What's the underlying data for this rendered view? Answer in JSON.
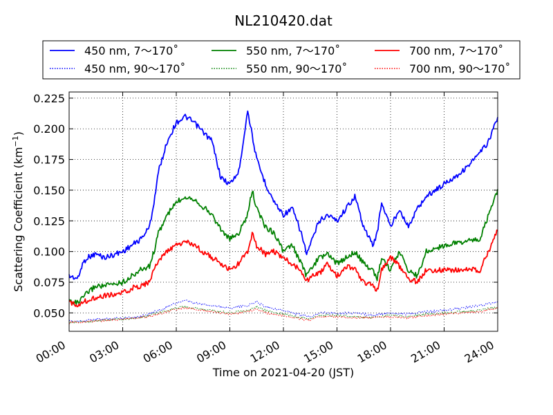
{
  "chart_data": {
    "type": "line",
    "title": "NL210420.dat",
    "xlabel": "Time on 2021-04-20 (JST)",
    "ylabel": "Scattering Coefficient (km",
    "ylabel_sup": "−1",
    "ylabel_close": ")",
    "xlim": [
      0,
      24
    ],
    "ylim": [
      0.035,
      0.23
    ],
    "grid": true,
    "legend_position": "top",
    "x_ticks": [
      0,
      3,
      6,
      9,
      12,
      15,
      18,
      21,
      24
    ],
    "x_tick_labels": [
      "00:00",
      "03:00",
      "06:00",
      "09:00",
      "12:00",
      "15:00",
      "18:00",
      "21:00",
      "24:00"
    ],
    "y_ticks": [
      0.05,
      0.075,
      0.1,
      0.125,
      0.15,
      0.175,
      0.2,
      0.225
    ],
    "y_tick_labels": [
      "0.050",
      "0.075",
      "0.100",
      "0.125",
      "0.150",
      "0.175",
      "0.200",
      "0.225"
    ],
    "series": [
      {
        "name": "450 nm, 7～170˚",
        "color": "#0000ff",
        "style": "solid",
        "x": [
          0,
          0.5,
          0.75,
          1,
          1.5,
          2,
          3,
          3.5,
          4,
          4.5,
          4.75,
          5,
          5.5,
          6,
          6.5,
          7,
          8,
          8.5,
          9,
          9.5,
          9.75,
          10,
          10.25,
          10.5,
          11,
          11.5,
          12,
          12.5,
          13,
          13.3,
          13.5,
          14,
          14.5,
          15,
          15.5,
          16,
          16.5,
          17,
          17.25,
          17.5,
          18,
          18.5,
          19,
          19.5,
          20,
          21,
          22,
          23,
          23.5,
          24
        ],
        "y": [
          0.08,
          0.078,
          0.09,
          0.095,
          0.098,
          0.095,
          0.1,
          0.105,
          0.11,
          0.12,
          0.14,
          0.165,
          0.19,
          0.205,
          0.21,
          0.205,
          0.19,
          0.16,
          0.155,
          0.165,
          0.19,
          0.215,
          0.195,
          0.175,
          0.155,
          0.14,
          0.13,
          0.135,
          0.115,
          0.098,
          0.105,
          0.125,
          0.13,
          0.125,
          0.135,
          0.145,
          0.12,
          0.105,
          0.115,
          0.14,
          0.12,
          0.135,
          0.12,
          0.135,
          0.145,
          0.155,
          0.165,
          0.18,
          0.19,
          0.21
        ]
      },
      {
        "name": "450 nm, 90～170˚",
        "color": "#0000ff",
        "style": "dotted",
        "x": [
          0,
          1,
          2,
          3,
          4,
          5,
          5.5,
          6,
          6.5,
          7,
          8,
          9,
          10,
          10.5,
          11,
          12,
          13,
          13.5,
          14,
          15,
          16,
          17,
          18,
          19,
          20,
          21,
          22,
          23,
          24
        ],
        "y": [
          0.043,
          0.044,
          0.045,
          0.046,
          0.047,
          0.052,
          0.055,
          0.058,
          0.06,
          0.058,
          0.056,
          0.054,
          0.056,
          0.059,
          0.055,
          0.052,
          0.048,
          0.047,
          0.05,
          0.05,
          0.05,
          0.048,
          0.05,
          0.049,
          0.051,
          0.052,
          0.054,
          0.056,
          0.059
        ]
      },
      {
        "name": "550 nm, 7～170˚",
        "color": "#008000",
        "style": "solid",
        "x": [
          0,
          0.5,
          1,
          1.5,
          2,
          3,
          3.5,
          4,
          4.5,
          4.75,
          5,
          5.5,
          6,
          6.5,
          7,
          8,
          8.5,
          9,
          9.5,
          10,
          10.25,
          10.5,
          11,
          11.5,
          12,
          12.5,
          13,
          13.3,
          13.5,
          14,
          14.5,
          15,
          15.5,
          16,
          16.5,
          17,
          17.25,
          17.5,
          18,
          18.5,
          19,
          19.5,
          20,
          21,
          22,
          23,
          23.5,
          24
        ],
        "y": [
          0.06,
          0.058,
          0.066,
          0.072,
          0.072,
          0.075,
          0.08,
          0.085,
          0.088,
          0.1,
          0.115,
          0.13,
          0.14,
          0.145,
          0.143,
          0.13,
          0.118,
          0.11,
          0.115,
          0.13,
          0.15,
          0.135,
          0.12,
          0.115,
          0.1,
          0.105,
          0.09,
          0.08,
          0.085,
          0.095,
          0.098,
          0.09,
          0.095,
          0.1,
          0.09,
          0.085,
          0.078,
          0.095,
          0.085,
          0.1,
          0.085,
          0.08,
          0.1,
          0.105,
          0.108,
          0.11,
          0.13,
          0.15
        ]
      },
      {
        "name": "550 nm, 90～170˚",
        "color": "#008000",
        "style": "dotted",
        "x": [
          0,
          1,
          2,
          3,
          4,
          5,
          5.5,
          6,
          6.5,
          7,
          8,
          9,
          10,
          10.5,
          11,
          12,
          13,
          13.5,
          14,
          15,
          16,
          17,
          18,
          19,
          20,
          21,
          22,
          23,
          24
        ],
        "y": [
          0.042,
          0.043,
          0.044,
          0.045,
          0.046,
          0.05,
          0.052,
          0.054,
          0.055,
          0.054,
          0.052,
          0.05,
          0.052,
          0.055,
          0.052,
          0.049,
          0.046,
          0.045,
          0.048,
          0.048,
          0.047,
          0.046,
          0.048,
          0.047,
          0.049,
          0.05,
          0.051,
          0.052,
          0.055
        ]
      },
      {
        "name": "700 nm, 7～170˚",
        "color": "#ff0000",
        "style": "solid",
        "x": [
          0,
          0.5,
          1,
          1.5,
          2,
          3,
          3.5,
          4,
          4.5,
          4.75,
          5,
          5.5,
          6,
          6.5,
          7,
          8,
          8.5,
          9,
          9.5,
          10,
          10.25,
          10.5,
          11,
          11.5,
          12,
          12.5,
          13,
          13.3,
          13.5,
          14,
          14.5,
          15,
          15.5,
          16,
          16.5,
          17,
          17.25,
          17.5,
          18,
          18.5,
          19,
          19.5,
          20,
          21,
          22,
          23,
          23.5,
          24
        ],
        "y": [
          0.058,
          0.057,
          0.06,
          0.063,
          0.064,
          0.066,
          0.07,
          0.072,
          0.075,
          0.085,
          0.093,
          0.1,
          0.105,
          0.108,
          0.105,
          0.095,
          0.09,
          0.085,
          0.09,
          0.1,
          0.115,
          0.105,
          0.098,
          0.1,
          0.095,
          0.09,
          0.085,
          0.075,
          0.08,
          0.082,
          0.09,
          0.08,
          0.088,
          0.085,
          0.075,
          0.072,
          0.068,
          0.085,
          0.095,
          0.088,
          0.078,
          0.075,
          0.085,
          0.085,
          0.085,
          0.085,
          0.1,
          0.118
        ]
      },
      {
        "name": "700 nm, 90～170˚",
        "color": "#ff0000",
        "style": "dotted",
        "x": [
          0,
          1,
          2,
          3,
          4,
          5,
          5.5,
          6,
          6.5,
          7,
          8,
          9,
          10,
          10.5,
          11,
          12,
          13,
          13.5,
          14,
          15,
          16,
          17,
          18,
          19,
          20,
          21,
          22,
          23,
          24
        ],
        "y": [
          0.042,
          0.043,
          0.044,
          0.045,
          0.046,
          0.049,
          0.051,
          0.053,
          0.054,
          0.053,
          0.051,
          0.049,
          0.051,
          0.053,
          0.05,
          0.048,
          0.045,
          0.044,
          0.047,
          0.047,
          0.046,
          0.046,
          0.047,
          0.046,
          0.048,
          0.049,
          0.05,
          0.051,
          0.054
        ]
      }
    ]
  }
}
